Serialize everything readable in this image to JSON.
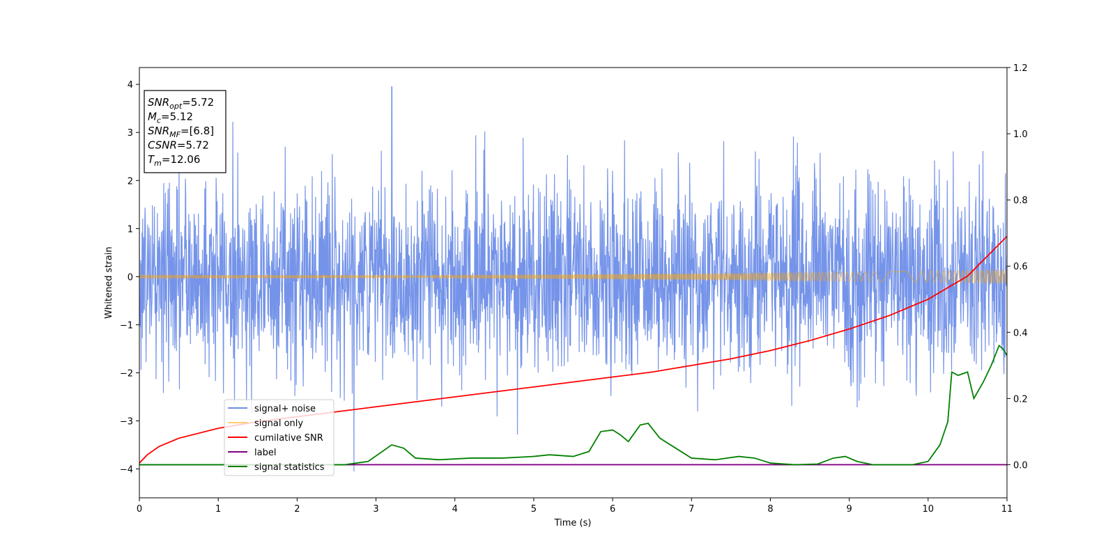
{
  "chart_data": {
    "type": "line",
    "xlabel": "Time (s)",
    "ylabel": "Whitened strain",
    "xlim": [
      0,
      11
    ],
    "ylim": [
      -4.6,
      4.35
    ],
    "y2lim": [
      -0.1,
      1.2
    ],
    "x_ticks": [
      "0",
      "1",
      "2",
      "3",
      "4",
      "5",
      "6",
      "7",
      "8",
      "9",
      "10",
      "11"
    ],
    "y_ticks": [
      "−4",
      "−3",
      "−2",
      "−1",
      "0",
      "1",
      "2",
      "3",
      "4"
    ],
    "y2_ticks": [
      "0.0",
      "0.2",
      "0.4",
      "0.6",
      "0.8",
      "1.0",
      "1.2"
    ],
    "grid": false,
    "legend_position": "lower-left",
    "info_box": [
      {
        "base": "SNR",
        "sub": "opt",
        "value": "=5.72"
      },
      {
        "base": "M",
        "sub": "c",
        "value": "=5.12"
      },
      {
        "base": "SNR",
        "sub": "MF",
        "value": "=[6.8]"
      },
      {
        "base": "CSNR",
        "sub": "",
        "value": "=5.72"
      },
      {
        "base": "T",
        "sub": "m",
        "value": "=12.06"
      }
    ],
    "series": [
      {
        "name": "signal+ noise",
        "axis": "left",
        "color": "#6e8ee8",
        "kind": "noise",
        "mean": 0.0,
        "std": 1.0,
        "peak_min": -4.05,
        "peak_max": 3.95,
        "note_peaks_x": [
          3.2,
          2.72
        ]
      },
      {
        "name": "signal only",
        "axis": "left",
        "color": "#ffa500",
        "kind": "chirp",
        "amplitude_start": 0.03,
        "amplitude_end": 0.14
      },
      {
        "name": "cumilative SNR",
        "axis": "right",
        "color": "#ff0000",
        "x": [
          0,
          0.1,
          0.25,
          0.5,
          1,
          1.5,
          2,
          2.5,
          3,
          3.5,
          4,
          4.5,
          5,
          5.5,
          6,
          6.5,
          7,
          7.5,
          8,
          8.5,
          9,
          9.5,
          10,
          10.5,
          11
        ],
        "values": [
          0.005,
          0.03,
          0.055,
          0.08,
          0.11,
          0.13,
          0.145,
          0.16,
          0.175,
          0.19,
          0.205,
          0.22,
          0.235,
          0.25,
          0.265,
          0.28,
          0.3,
          0.32,
          0.345,
          0.375,
          0.41,
          0.45,
          0.5,
          0.57,
          0.69
        ]
      },
      {
        "name": "label",
        "axis": "right",
        "color": "#800080",
        "x": [
          0,
          11
        ],
        "values": [
          0,
          0
        ]
      },
      {
        "name": "signal statistics",
        "axis": "right",
        "color": "#008000",
        "x": [
          0,
          1,
          2,
          2.6,
          2.9,
          3.2,
          3.35,
          3.5,
          3.8,
          4.2,
          4.6,
          5.0,
          5.2,
          5.5,
          5.7,
          5.85,
          6.0,
          6.1,
          6.2,
          6.35,
          6.45,
          6.6,
          6.8,
          7.0,
          7.3,
          7.6,
          7.8,
          8.0,
          8.3,
          8.6,
          8.8,
          8.95,
          9.1,
          9.3,
          9.8,
          10.0,
          10.15,
          10.25,
          10.3,
          10.38,
          10.5,
          10.58,
          10.7,
          10.8,
          10.9,
          10.95,
          11.0
        ],
        "values": [
          0.0,
          0.0,
          0.0,
          0.0,
          0.01,
          0.06,
          0.05,
          0.02,
          0.015,
          0.02,
          0.02,
          0.025,
          0.03,
          0.025,
          0.04,
          0.1,
          0.105,
          0.09,
          0.07,
          0.12,
          0.125,
          0.08,
          0.05,
          0.02,
          0.015,
          0.025,
          0.02,
          0.005,
          0.0,
          0.002,
          0.02,
          0.025,
          0.01,
          0.0,
          0.0,
          0.01,
          0.06,
          0.13,
          0.28,
          0.27,
          0.28,
          0.2,
          0.25,
          0.3,
          0.36,
          0.35,
          0.33
        ]
      }
    ]
  }
}
